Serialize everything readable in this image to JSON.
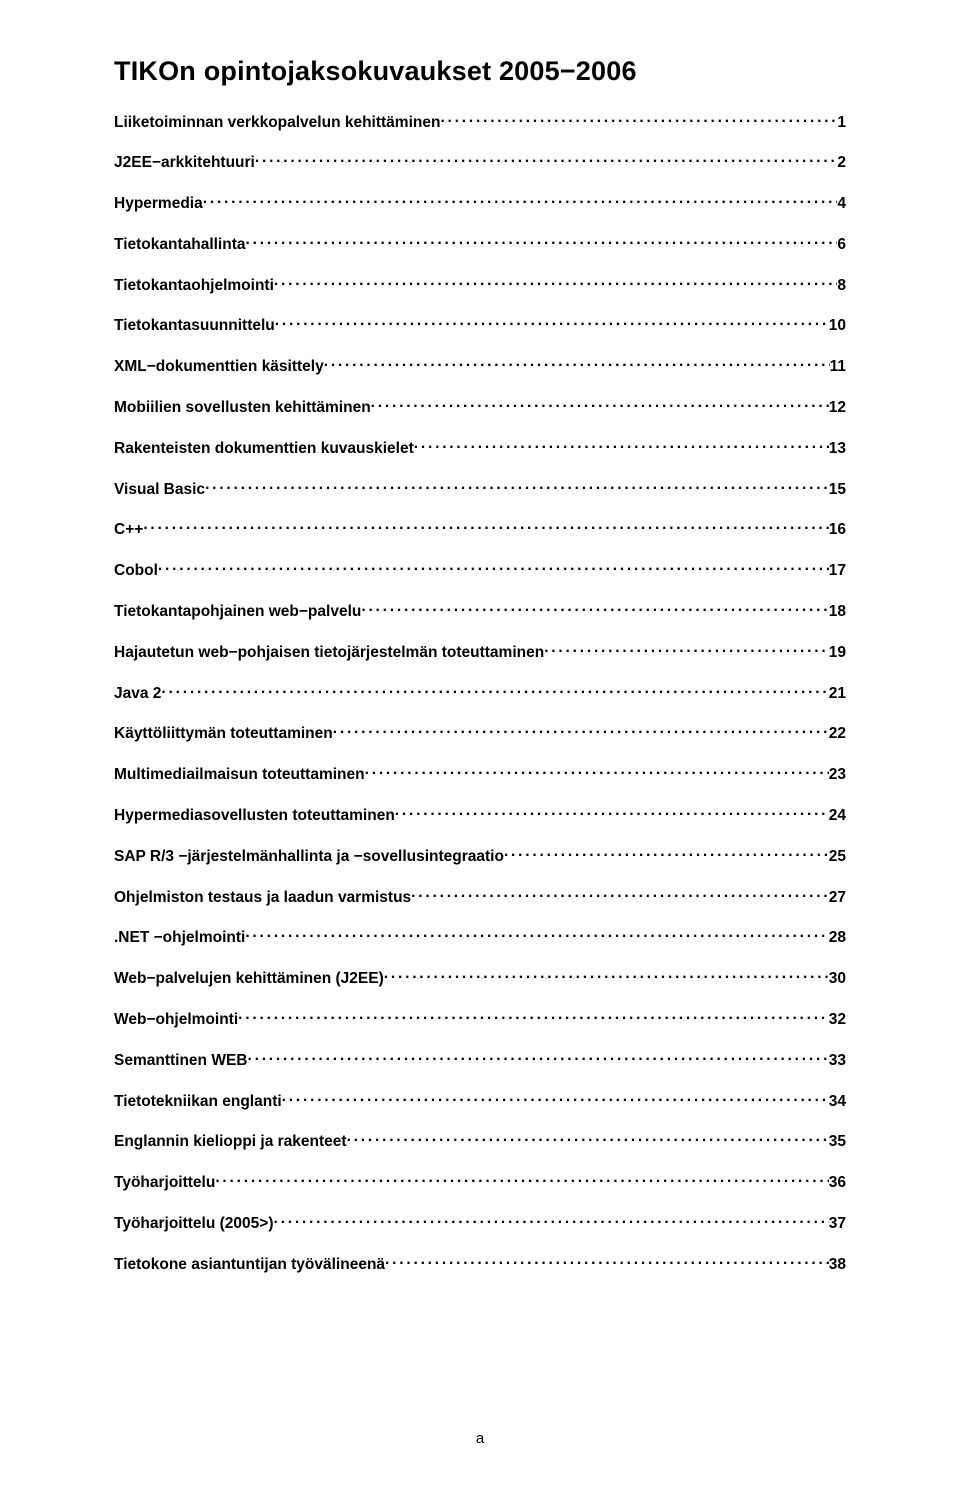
{
  "title": "TIKOn opintojaksokuvaukset 2005−2006",
  "footer": "a",
  "toc": [
    {
      "label": "Liiketoiminnan verkkopalvelun kehittäminen",
      "page": "1"
    },
    {
      "label": "J2EE−arkkitehtuuri",
      "page": "2"
    },
    {
      "label": "Hypermedia",
      "page": "4"
    },
    {
      "label": "Tietokantahallinta",
      "page": "6"
    },
    {
      "label": "Tietokantaohjelmointi",
      "page": "8"
    },
    {
      "label": "Tietokantasuunnittelu",
      "page": "10"
    },
    {
      "label": "XML−dokumenttien käsittely",
      "page": "11"
    },
    {
      "label": "Mobiilien sovellusten kehittäminen",
      "page": "12"
    },
    {
      "label": "Rakenteisten dokumenttien kuvauskielet",
      "page": "13"
    },
    {
      "label": "Visual Basic",
      "page": "15"
    },
    {
      "label": "C++",
      "page": "16"
    },
    {
      "label": "Cobol",
      "page": "17"
    },
    {
      "label": "Tietokantapohjainen web−palvelu",
      "page": "18"
    },
    {
      "label": "Hajautetun web−pohjaisen tietojärjestelmän toteuttaminen",
      "page": "19"
    },
    {
      "label": "Java 2",
      "page": "21"
    },
    {
      "label": "Käyttöliittymän toteuttaminen",
      "page": "22"
    },
    {
      "label": "Multimediailmaisun toteuttaminen",
      "page": "23"
    },
    {
      "label": "Hypermediasovellusten toteuttaminen",
      "page": "24"
    },
    {
      "label": "SAP R/3 −järjestelmänhallinta ja −sovellusintegraatio",
      "page": "25"
    },
    {
      "label": "Ohjelmiston testaus ja laadun varmistus",
      "page": "27"
    },
    {
      "label": ".NET −ohjelmointi",
      "page": "28"
    },
    {
      "label": "Web−palvelujen kehittäminen (J2EE)",
      "page": "30"
    },
    {
      "label": "Web−ohjelmointi",
      "page": "32"
    },
    {
      "label": "Semanttinen WEB",
      "page": "33"
    },
    {
      "label": "Tietotekniikan englanti",
      "page": "34"
    },
    {
      "label": "Englannin kielioppi ja rakenteet",
      "page": "35"
    },
    {
      "label": "Työharjoittelu",
      "page": "36"
    },
    {
      "label": "Työharjoittelu (2005>)",
      "page": "37"
    },
    {
      "label": "Tietokone asiantuntijan työvälineenä",
      "page": "38"
    }
  ]
}
